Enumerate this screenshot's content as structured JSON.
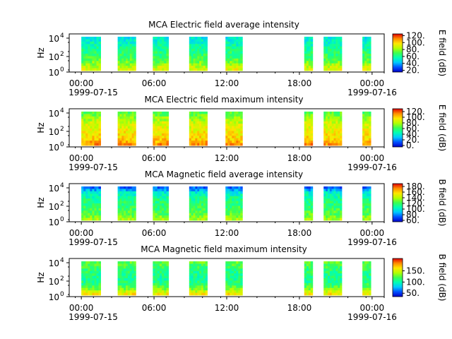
{
  "colormap": [
    "#0000c8",
    "#0050ff",
    "#00c8ff",
    "#00ffb4",
    "#3cff50",
    "#b4ff00",
    "#ffe600",
    "#ff8c00",
    "#e10000"
  ],
  "x_ticks": {
    "hours": [
      0,
      6,
      12,
      18,
      24
    ],
    "labels": [
      "00:00",
      "06:00",
      "12:00",
      "18:00",
      "00:00"
    ],
    "date_start": "1999-07-15",
    "date_end": "1999-07-16",
    "xlim_hours": [
      -1,
      25
    ],
    "minor_every_hours": 1.5
  },
  "chart_data": [
    {
      "type": "heatmap",
      "title": "MCA  Electric field average intensity",
      "ylabel": "Hz",
      "y_scale": "log",
      "y_ticks": [
        "10^4",
        "10^2",
        "10^0"
      ],
      "y_ticks_base": [
        "10",
        "10",
        "10"
      ],
      "y_ticks_exp": [
        "4",
        "2",
        "0"
      ],
      "colorbar": {
        "label": "E field (dB)",
        "range": [
          15,
          125
        ],
        "ticks": [
          20,
          40,
          60,
          80,
          100,
          120
        ],
        "tick_labels": [
          "20.",
          "40.",
          "60.",
          "80.",
          "100.",
          "120."
        ]
      },
      "intervals_hours": [
        [
          0.0,
          1.6
        ],
        [
          3.0,
          4.5
        ],
        [
          5.9,
          7.2
        ],
        [
          8.9,
          10.4
        ],
        [
          11.9,
          13.3
        ],
        [
          18.4,
          19.1
        ],
        [
          20.0,
          21.5
        ],
        [
          23.2,
          23.9
        ]
      ],
      "profile_db": [
        50,
        55,
        60,
        65,
        70,
        80,
        92
      ]
    },
    {
      "type": "heatmap",
      "title": "MCA  Electric field maximum intensity",
      "ylabel": "Hz",
      "y_scale": "log",
      "y_ticks": [
        "10^4",
        "10^2",
        "10^0"
      ],
      "y_ticks_base": [
        "10",
        "10",
        "10"
      ],
      "y_ticks_exp": [
        "4",
        "2",
        "0"
      ],
      "colorbar": {
        "label": "E field (dB)",
        "range": [
          -5,
          130
        ],
        "ticks": [
          0,
          20,
          40,
          60,
          80,
          100,
          120
        ],
        "tick_labels": [
          "0.",
          "20.",
          "40.",
          "60.",
          "80.",
          "100.",
          "120."
        ]
      },
      "intervals_hours": [
        [
          0.0,
          1.6
        ],
        [
          3.0,
          4.5
        ],
        [
          5.9,
          7.2
        ],
        [
          8.9,
          10.4
        ],
        [
          11.9,
          13.3
        ],
        [
          18.4,
          19.1
        ],
        [
          20.0,
          21.5
        ],
        [
          23.2,
          23.9
        ]
      ],
      "profile_db": [
        65,
        75,
        85,
        90,
        95,
        100,
        110
      ]
    },
    {
      "type": "heatmap",
      "title": "MCA  Magnetic field average intensity",
      "ylabel": "Hz",
      "y_scale": "log",
      "y_ticks": [
        "10^4",
        "10^2",
        "10^0"
      ],
      "y_ticks_base": [
        "10",
        "10",
        "10"
      ],
      "y_ticks_exp": [
        "4",
        "2",
        "0"
      ],
      "colorbar": {
        "label": "B field (dB)",
        "range": [
          55,
          190
        ],
        "ticks": [
          60,
          80,
          100,
          120,
          140,
          160,
          180
        ],
        "tick_labels": [
          "60.",
          "80.",
          "100.",
          "120.",
          "140.",
          "160.",
          "180."
        ]
      },
      "intervals_hours": [
        [
          0.0,
          1.6
        ],
        [
          3.0,
          4.5
        ],
        [
          5.9,
          7.2
        ],
        [
          8.9,
          10.4
        ],
        [
          11.9,
          13.3
        ],
        [
          18.4,
          19.1
        ],
        [
          20.0,
          21.5
        ],
        [
          23.2,
          23.9
        ]
      ],
      "profile_db": [
        75,
        100,
        110,
        115,
        120,
        125,
        140
      ]
    },
    {
      "type": "heatmap",
      "title": "MCA  Magnetic field maximum intensity",
      "ylabel": "Hz",
      "y_scale": "log",
      "y_ticks": [
        "10^4",
        "10^2",
        "10^0"
      ],
      "y_ticks_base": [
        "10",
        "10",
        "10"
      ],
      "y_ticks_exp": [
        "4",
        "2",
        "0"
      ],
      "colorbar": {
        "label": "B field (dB)",
        "range": [
          35,
          205
        ],
        "ticks": [
          50,
          100,
          150
        ],
        "tick_labels": [
          "50.",
          "100.",
          "150."
        ]
      },
      "intervals_hours": [
        [
          0.0,
          1.6
        ],
        [
          3.0,
          4.5
        ],
        [
          5.9,
          7.2
        ],
        [
          8.9,
          10.4
        ],
        [
          11.9,
          13.3
        ],
        [
          18.4,
          19.1
        ],
        [
          20.0,
          21.5
        ],
        [
          23.2,
          23.9
        ]
      ],
      "profile_db": [
        125,
        115,
        110,
        105,
        110,
        130,
        160
      ]
    }
  ]
}
